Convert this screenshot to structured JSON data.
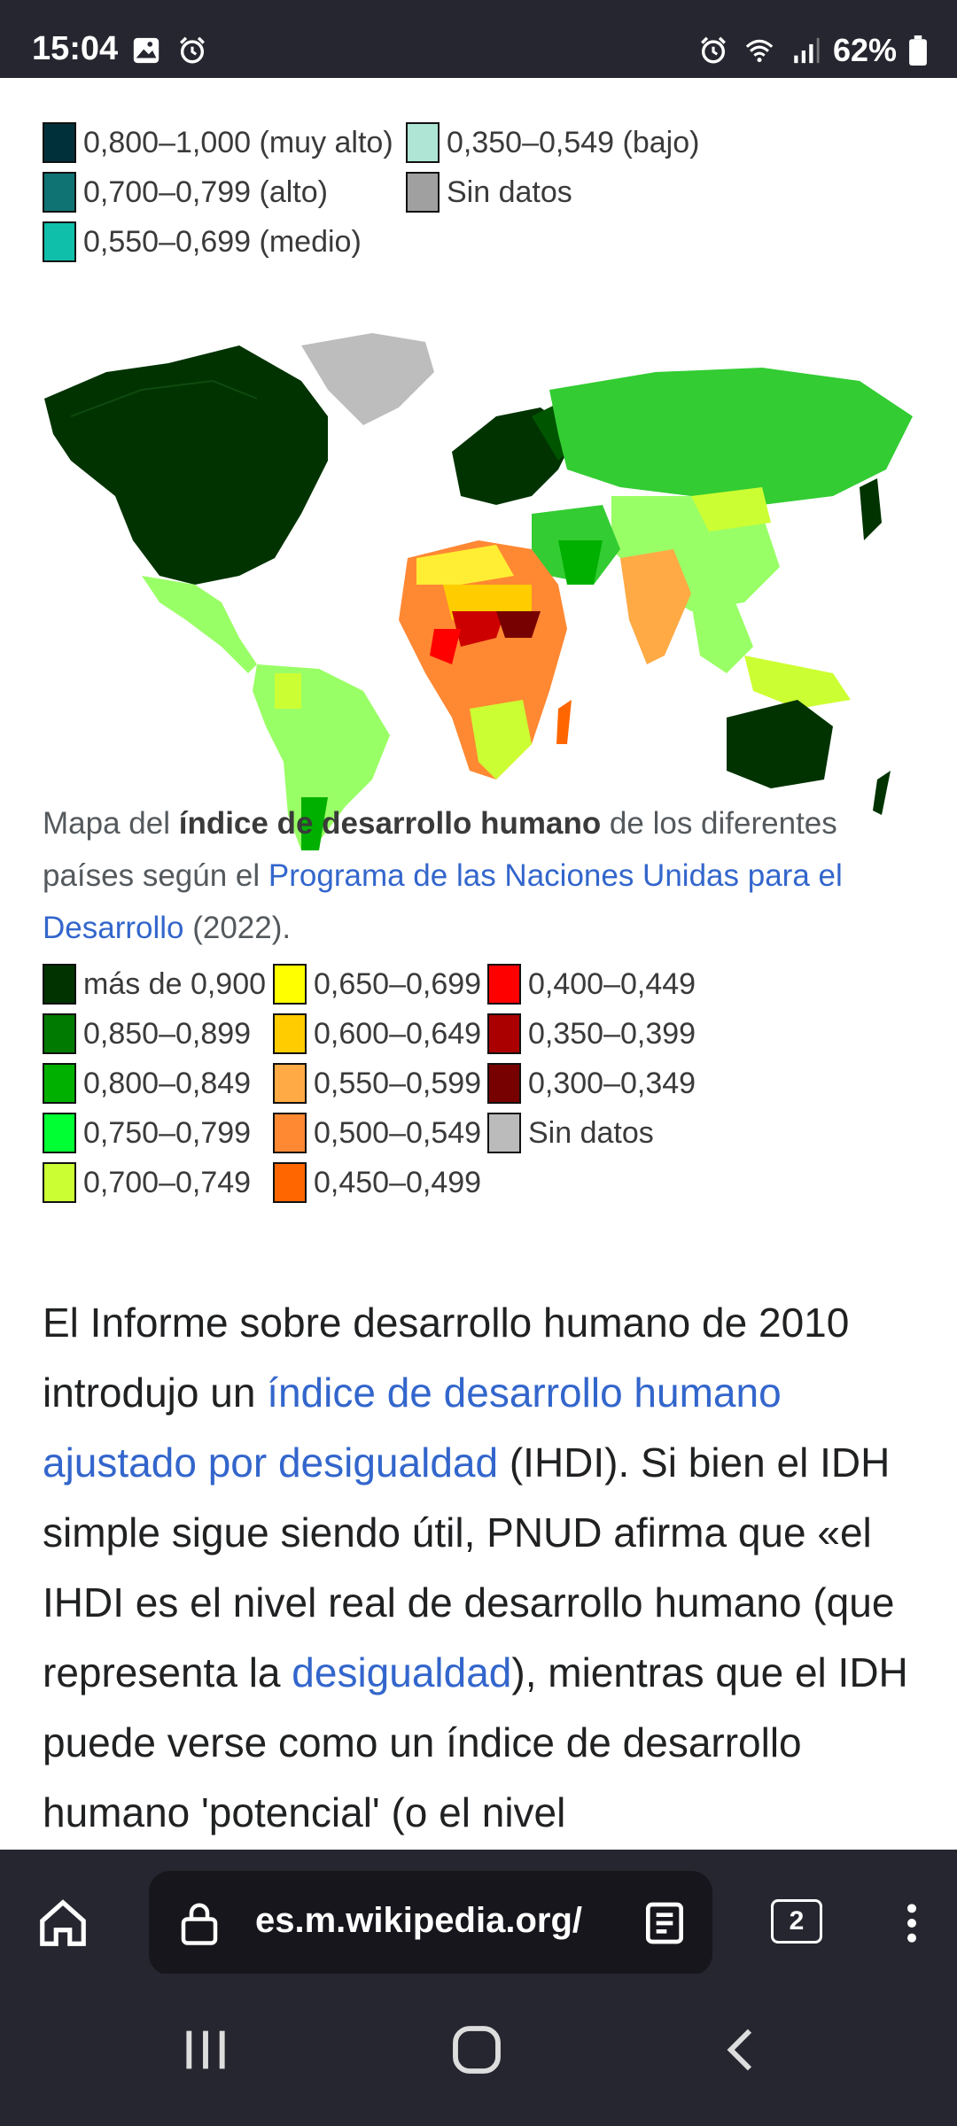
{
  "status_bar": {
    "time": "15:04",
    "battery": "62%"
  },
  "legend_top": {
    "items": [
      {
        "label": "0,800–1,000 (muy alto)",
        "color": "#00313a"
      },
      {
        "label": "0,700–0,799 (alto)",
        "color": "#0f7373"
      },
      {
        "label": "0,550–0,699 (medio)",
        "color": "#0fbfaa"
      },
      {
        "label": "0,350–0,549 (bajo)",
        "color": "#aee5d4"
      },
      {
        "label": "Sin datos",
        "color": "#a0a0a0"
      }
    ]
  },
  "caption": {
    "part1": "Mapa del ",
    "bold": "índice de desarrollo humano",
    "part2": " de los diferentes países según el ",
    "link": "Programa de las Naciones Unidas para el Desarrollo",
    "part3": " (2022)."
  },
  "legend_bottom": {
    "items": [
      {
        "label": "más de 0,900",
        "color": "#003300"
      },
      {
        "label": "0,850–0,899",
        "color": "#007a00"
      },
      {
        "label": "0,800–0,849",
        "color": "#00b000"
      },
      {
        "label": "0,750–0,799",
        "color": "#00ff33"
      },
      {
        "label": "0,700–0,749",
        "color": "#ccff33"
      },
      {
        "label": "0,650–0,699",
        "color": "#ffff00"
      },
      {
        "label": "0,600–0,649",
        "color": "#ffcc00"
      },
      {
        "label": "0,550–0,599",
        "color": "#ffaa44"
      },
      {
        "label": "0,500–0,549",
        "color": "#ff8833"
      },
      {
        "label": "0,450–0,499",
        "color": "#ff6600"
      },
      {
        "label": "0,400–0,449",
        "color": "#ff0000"
      },
      {
        "label": "0,350–0,399",
        "color": "#aa0000"
      },
      {
        "label": "0,300–0,349",
        "color": "#770000"
      },
      {
        "label": "Sin datos",
        "color": "#bbbbbb"
      }
    ]
  },
  "article": {
    "t1": "El Informe sobre desarrollo humano de 2010 introdujo un ",
    "link1": "índice de desarrollo humano ajustado por desigualdad",
    "t2": " (IHDI). Si bien el IDH simple sigue siendo útil, PNUD afirma que «el IHDI es el nivel real de desarrollo humano (que representa la ",
    "link2": "desigualdad",
    "t3": "), mientras que el IDH puede verse como un índice de desarrollo humano 'potencial' (o el nivel"
  },
  "browser": {
    "url": "es.m.wikipedia.org/",
    "tabs_count": "2"
  }
}
